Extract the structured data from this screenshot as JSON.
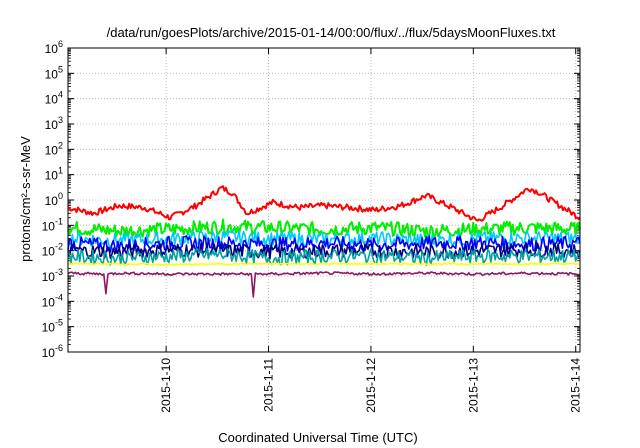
{
  "chart_data": {
    "type": "line",
    "title": "/data/run/goesPlots/archive/2015-01-14/00:00/flux/../flux/5daysMoonFluxes.txt",
    "xlabel": "Coordinated Universal Time (UTC)",
    "ylabel": "protons/cm²-s-sr-MeV",
    "yscale": "log",
    "ylim": [
      1e-06,
      1000000.0
    ],
    "xlim": [
      "2015-01-09 02:00",
      "2015-01-14 02:00"
    ],
    "x_ticks": [
      "2015-1-10",
      "2015-1-11",
      "2015-1-12",
      "2015-1-13",
      "2015-1-14"
    ],
    "y_ticks": [
      {
        "base": "10",
        "exp": "6"
      },
      {
        "base": "10",
        "exp": "5"
      },
      {
        "base": "10",
        "exp": "4"
      },
      {
        "base": "10",
        "exp": "3"
      },
      {
        "base": "10",
        "exp": "2"
      },
      {
        "base": "10",
        "exp": "1"
      },
      {
        "base": "10",
        "exp": "0"
      },
      {
        "base": "10",
        "exp": "-1"
      },
      {
        "base": "10",
        "exp": "-2"
      },
      {
        "base": "10",
        "exp": "-3"
      },
      {
        "base": "10",
        "exp": "-4"
      },
      {
        "base": "10",
        "exp": "-5"
      },
      {
        "base": "10",
        "exp": "-6"
      }
    ],
    "grid": true,
    "series": [
      {
        "color": "#ff0000",
        "x": [
          0,
          0.25,
          0.5,
          0.75,
          1.0,
          1.25,
          1.5,
          1.6,
          1.75,
          2.0,
          2.25,
          2.5,
          2.75,
          3.0,
          3.25,
          3.5,
          3.75,
          4.0,
          4.25,
          4.5,
          4.6,
          4.75,
          5.0
        ],
        "y": [
          0.5,
          0.3,
          0.6,
          0.5,
          0.2,
          0.6,
          3.0,
          2.0,
          0.3,
          0.8,
          0.5,
          0.6,
          0.5,
          0.4,
          0.6,
          1.5,
          0.5,
          0.15,
          0.6,
          3.0,
          2.0,
          0.8,
          0.2
        ]
      },
      {
        "color": "#00ee00",
        "x": [
          0,
          0.5,
          1.0,
          1.5,
          2.0,
          2.5,
          3.0,
          3.5,
          4.0,
          4.5,
          5.0
        ],
        "y": [
          0.08,
          0.06,
          0.07,
          0.09,
          0.08,
          0.07,
          0.08,
          0.06,
          0.07,
          0.08,
          0.07
        ]
      },
      {
        "color": "#00c8ff",
        "x": [
          0,
          0.5,
          1.0,
          1.5,
          2.0,
          2.5,
          3.0,
          3.5,
          4.0,
          4.5,
          5.0
        ],
        "y": [
          0.03,
          0.025,
          0.03,
          0.035,
          0.03,
          0.028,
          0.03,
          0.025,
          0.03,
          0.032,
          0.03
        ]
      },
      {
        "color": "#0000ff",
        "x": [
          0,
          0.5,
          1.0,
          1.5,
          2.0,
          2.5,
          3.0,
          3.5,
          4.0,
          4.5,
          5.0
        ],
        "y": [
          0.02,
          0.015,
          0.02,
          0.02,
          0.018,
          0.02,
          0.017,
          0.02,
          0.02,
          0.018,
          0.02
        ]
      },
      {
        "color": "#000080",
        "x": [
          0,
          0.5,
          1.0,
          1.5,
          2.0,
          2.5,
          3.0,
          3.5,
          4.0,
          4.5,
          5.0
        ],
        "y": [
          0.01,
          0.009,
          0.011,
          0.01,
          0.009,
          0.01,
          0.01,
          0.009,
          0.01,
          0.011,
          0.01
        ]
      },
      {
        "color": "#00a0a0",
        "x": [
          0,
          0.5,
          1.0,
          1.5,
          2.0,
          2.5,
          3.0,
          3.5,
          4.0,
          4.5,
          5.0
        ],
        "y": [
          0.006,
          0.005,
          0.006,
          0.007,
          0.005,
          0.006,
          0.006,
          0.005,
          0.006,
          0.006,
          0.006
        ]
      },
      {
        "color": "#ffff00",
        "x": [
          0,
          0.5,
          1.0,
          1.5,
          2.0,
          2.5,
          3.0,
          3.5,
          4.0,
          4.5,
          5.0
        ],
        "y": [
          0.003,
          0.003,
          0.0028,
          0.003,
          0.003,
          0.003,
          0.003,
          0.003,
          0.003,
          0.003,
          0.003
        ]
      },
      {
        "color": "#8b1a5c",
        "x": [
          0,
          0.35,
          0.37,
          0.39,
          0.5,
          1.0,
          1.79,
          1.81,
          1.83,
          2.0,
          2.5,
          3.0,
          3.5,
          4.0,
          4.5,
          5.0
        ],
        "y": [
          0.0013,
          0.0012,
          0.0002,
          0.0012,
          0.0013,
          0.0012,
          0.0012,
          0.00015,
          0.0012,
          0.0012,
          0.0013,
          0.0012,
          0.0013,
          0.0012,
          0.0013,
          0.0012
        ]
      }
    ]
  }
}
